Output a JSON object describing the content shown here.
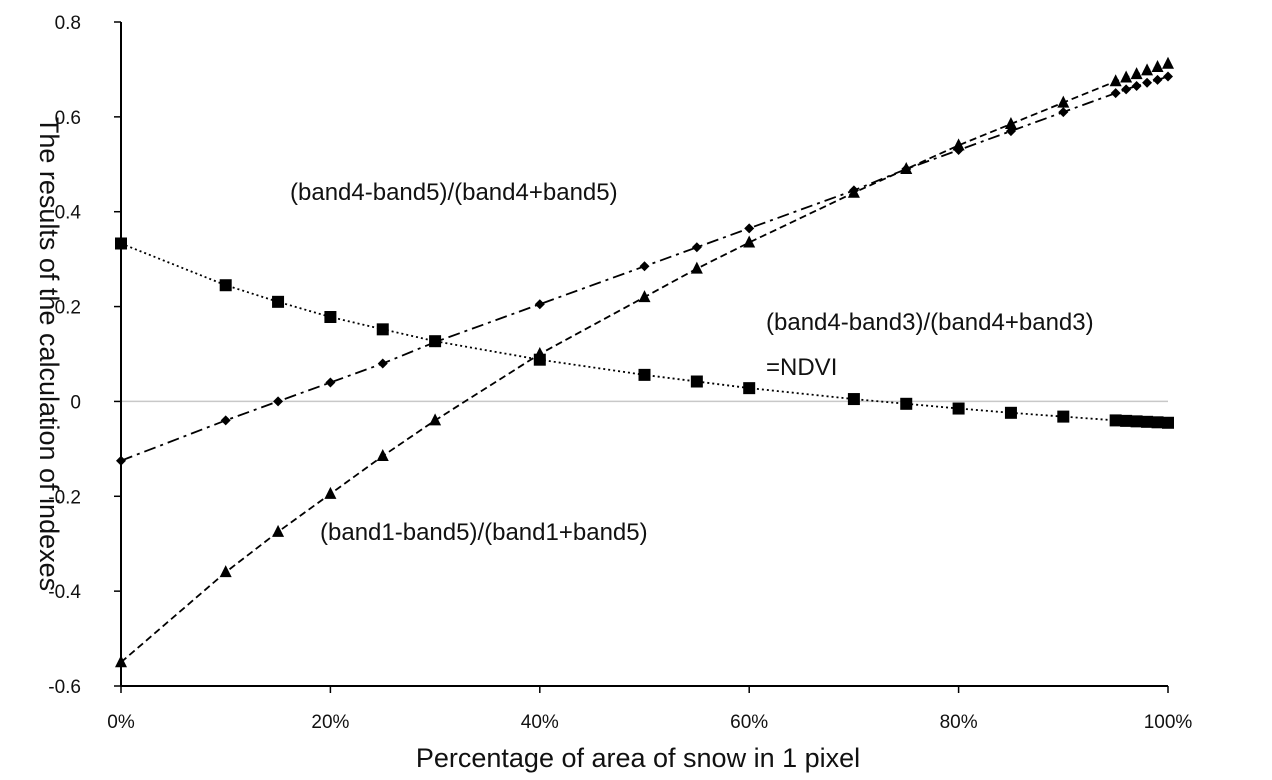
{
  "chart_data": {
    "type": "line",
    "title": "",
    "xlabel": "Percentage of area of snow in 1 pixel",
    "ylabel": "The results of the calculation of indexes",
    "xlim": [
      0,
      100
    ],
    "ylim": [
      -0.6,
      0.8
    ],
    "x_ticks": [
      0,
      20,
      40,
      60,
      80,
      100
    ],
    "x_tick_labels": [
      "0%",
      "20%",
      "40%",
      "60%",
      "80%",
      "100%"
    ],
    "y_ticks": [
      -0.6,
      -0.4,
      -0.2,
      0,
      0.2,
      0.4,
      0.6,
      0.8
    ],
    "y_tick_labels": [
      "-0.6",
      "-0.4",
      "-0.2",
      "0",
      "0.2",
      "0.4",
      "0.6",
      "0.8"
    ],
    "grid": false,
    "legend": "none",
    "series": [
      {
        "name": "(band4-band5)/(band4+band5)",
        "marker": "diamond",
        "line_style": "dash-dot",
        "x": [
          0,
          10,
          15,
          20,
          25,
          30,
          40,
          50,
          55,
          60,
          70,
          75,
          80,
          85,
          90,
          95,
          96,
          97,
          98,
          99,
          100
        ],
        "values": [
          -0.125,
          -0.04,
          0.0,
          0.04,
          0.08,
          0.125,
          0.205,
          0.285,
          0.325,
          0.365,
          0.445,
          0.49,
          0.53,
          0.57,
          0.61,
          0.65,
          0.658,
          0.665,
          0.672,
          0.678,
          0.685
        ]
      },
      {
        "name": "(band4-band3)/(band4+band3)=NDVI",
        "marker": "square",
        "line_style": "dotted",
        "x": [
          0,
          10,
          15,
          20,
          25,
          30,
          40,
          50,
          55,
          60,
          70,
          75,
          80,
          85,
          90,
          95,
          96,
          97,
          98,
          99,
          100
        ],
        "values": [
          0.333,
          0.245,
          0.21,
          0.178,
          0.152,
          0.127,
          0.088,
          0.056,
          0.042,
          0.028,
          0.005,
          -0.005,
          -0.015,
          -0.024,
          -0.032,
          -0.04,
          -0.041,
          -0.042,
          -0.043,
          -0.044,
          -0.045
        ]
      },
      {
        "name": "(band1-band5)/(band1+band5)",
        "marker": "triangle",
        "line_style": "dashed",
        "x": [
          0,
          10,
          15,
          20,
          25,
          30,
          40,
          50,
          55,
          60,
          70,
          75,
          80,
          85,
          90,
          95,
          96,
          97,
          98,
          99,
          100
        ],
        "values": [
          -0.55,
          -0.36,
          -0.275,
          -0.195,
          -0.115,
          -0.04,
          0.1,
          0.22,
          0.28,
          0.335,
          0.44,
          0.49,
          0.54,
          0.585,
          0.63,
          0.675,
          0.683,
          0.69,
          0.698,
          0.705,
          0.712
        ]
      }
    ],
    "annotations": [
      {
        "text": "(band4-band5)/(band4+band5)"
      },
      {
        "text": "(band4-band3)/(band4+band3)"
      },
      {
        "text": "=NDVI"
      },
      {
        "text": "(band1-band5)/(band1+band5)"
      }
    ]
  }
}
